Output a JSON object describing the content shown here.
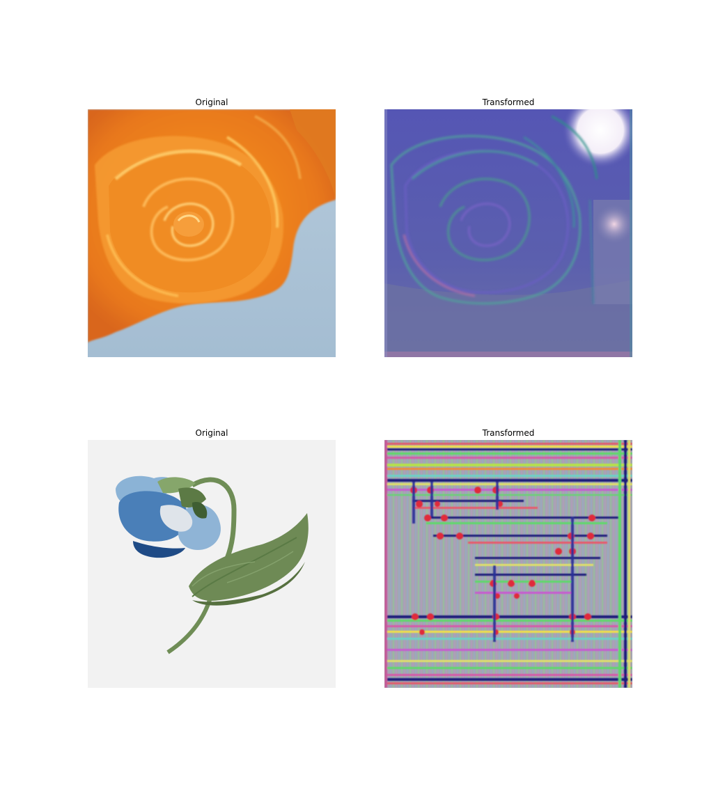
{
  "figure": {
    "panels": [
      {
        "title": "Original",
        "content": "orange-rose-photo"
      },
      {
        "title": "Transformed",
        "content": "blue-purple-rose-transformed"
      },
      {
        "title": "Original",
        "content": "blue-flower-illustration"
      },
      {
        "title": "Transformed",
        "content": "striped-rainbow-artifact-pattern"
      }
    ],
    "colors": {
      "rose_orange": "#f28a1e",
      "sky_blue": "#a8c2d6",
      "transformed_purple": "#5a5fb0",
      "illustration_bg": "#f2f2f2",
      "flower_blue": "#4a78ad",
      "leaf_green": "#6e8a55"
    }
  }
}
